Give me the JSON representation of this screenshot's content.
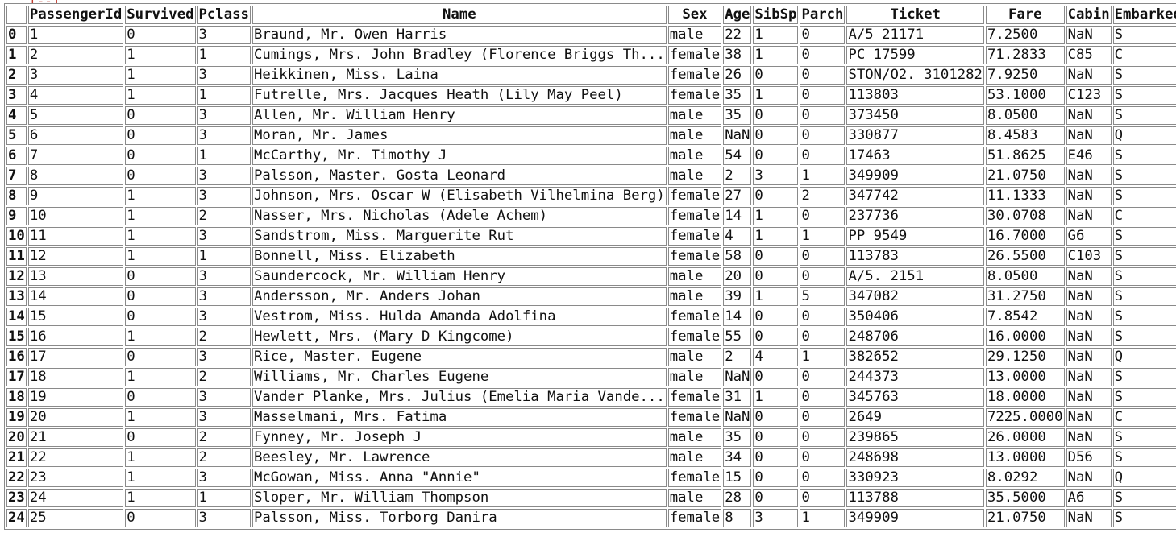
{
  "table": {
    "columns": [
      "PassengerId",
      "Survived",
      "Pclass",
      "Name",
      "Sex",
      "Age",
      "SibSp",
      "Parch",
      "Ticket",
      "Fare",
      "Cabin",
      "Embarked"
    ],
    "rows": [
      {
        "index": "0",
        "cells": [
          "1",
          "0",
          "3",
          "Braund, Mr. Owen Harris",
          "male",
          "22",
          "1",
          "0",
          "A/5 21171",
          "7.2500",
          "NaN",
          "S"
        ]
      },
      {
        "index": "1",
        "cells": [
          "2",
          "1",
          "1",
          "Cumings, Mrs. John Bradley (Florence Briggs Th...",
          "female",
          "38",
          "1",
          "0",
          "PC 17599",
          "71.2833",
          "C85",
          "C"
        ]
      },
      {
        "index": "2",
        "cells": [
          "3",
          "1",
          "3",
          "Heikkinen, Miss. Laina",
          "female",
          "26",
          "0",
          "0",
          "STON/O2. 3101282",
          "7.9250",
          "NaN",
          "S"
        ]
      },
      {
        "index": "3",
        "cells": [
          "4",
          "1",
          "1",
          "Futrelle, Mrs. Jacques Heath (Lily May Peel)",
          "female",
          "35",
          "1",
          "0",
          "113803",
          "53.1000",
          "C123",
          "S"
        ]
      },
      {
        "index": "4",
        "cells": [
          "5",
          "0",
          "3",
          "Allen, Mr. William Henry",
          "male",
          "35",
          "0",
          "0",
          "373450",
          "8.0500",
          "NaN",
          "S"
        ]
      },
      {
        "index": "5",
        "cells": [
          "6",
          "0",
          "3",
          "Moran, Mr. James",
          "male",
          "NaN",
          "0",
          "0",
          "330877",
          "8.4583",
          "NaN",
          "Q"
        ]
      },
      {
        "index": "6",
        "cells": [
          "7",
          "0",
          "1",
          "McCarthy, Mr. Timothy J",
          "male",
          "54",
          "0",
          "0",
          "17463",
          "51.8625",
          "E46",
          "S"
        ]
      },
      {
        "index": "7",
        "cells": [
          "8",
          "0",
          "3",
          "Palsson, Master. Gosta Leonard",
          "male",
          "2",
          "3",
          "1",
          "349909",
          "21.0750",
          "NaN",
          "S"
        ]
      },
      {
        "index": "8",
        "cells": [
          "9",
          "1",
          "3",
          "Johnson, Mrs. Oscar W (Elisabeth Vilhelmina Berg)",
          "female",
          "27",
          "0",
          "2",
          "347742",
          "11.1333",
          "NaN",
          "S"
        ]
      },
      {
        "index": "9",
        "cells": [
          "10",
          "1",
          "2",
          "Nasser, Mrs. Nicholas (Adele Achem)",
          "female",
          "14",
          "1",
          "0",
          "237736",
          "30.0708",
          "NaN",
          "C"
        ]
      },
      {
        "index": "10",
        "cells": [
          "11",
          "1",
          "3",
          "Sandstrom, Miss. Marguerite Rut",
          "female",
          "4",
          "1",
          "1",
          "PP 9549",
          "16.7000",
          "G6",
          "S"
        ]
      },
      {
        "index": "11",
        "cells": [
          "12",
          "1",
          "1",
          "Bonnell, Miss. Elizabeth",
          "female",
          "58",
          "0",
          "0",
          "113783",
          "26.5500",
          "C103",
          "S"
        ]
      },
      {
        "index": "12",
        "cells": [
          "13",
          "0",
          "3",
          "Saundercock, Mr. William Henry",
          "male",
          "20",
          "0",
          "0",
          "A/5. 2151",
          "8.0500",
          "NaN",
          "S"
        ]
      },
      {
        "index": "13",
        "cells": [
          "14",
          "0",
          "3",
          "Andersson, Mr. Anders Johan",
          "male",
          "39",
          "1",
          "5",
          "347082",
          "31.2750",
          "NaN",
          "S"
        ]
      },
      {
        "index": "14",
        "cells": [
          "15",
          "0",
          "3",
          "Vestrom, Miss. Hulda Amanda Adolfina",
          "female",
          "14",
          "0",
          "0",
          "350406",
          "7.8542",
          "NaN",
          "S"
        ]
      },
      {
        "index": "15",
        "cells": [
          "16",
          "1",
          "2",
          "Hewlett, Mrs. (Mary D Kingcome)",
          "female",
          "55",
          "0",
          "0",
          "248706",
          "16.0000",
          "NaN",
          "S"
        ]
      },
      {
        "index": "16",
        "cells": [
          "17",
          "0",
          "3",
          "Rice, Master. Eugene",
          "male",
          "2",
          "4",
          "1",
          "382652",
          "29.1250",
          "NaN",
          "Q"
        ]
      },
      {
        "index": "17",
        "cells": [
          "18",
          "1",
          "2",
          "Williams, Mr. Charles Eugene",
          "male",
          "NaN",
          "0",
          "0",
          "244373",
          "13.0000",
          "NaN",
          "S"
        ]
      },
      {
        "index": "18",
        "cells": [
          "19",
          "0",
          "3",
          "Vander Planke, Mrs. Julius (Emelia Maria Vande...",
          "female",
          "31",
          "1",
          "0",
          "345763",
          "18.0000",
          "NaN",
          "S"
        ]
      },
      {
        "index": "19",
        "cells": [
          "20",
          "1",
          "3",
          "Masselmani, Mrs. Fatima",
          "female",
          "NaN",
          "0",
          "0",
          "2649",
          "7225.0000",
          "NaN",
          "C"
        ]
      },
      {
        "index": "20",
        "cells": [
          "21",
          "0",
          "2",
          "Fynney, Mr. Joseph J",
          "male",
          "35",
          "0",
          "0",
          "239865",
          "26.0000",
          "NaN",
          "S"
        ]
      },
      {
        "index": "21",
        "cells": [
          "22",
          "1",
          "2",
          "Beesley, Mr. Lawrence",
          "male",
          "34",
          "0",
          "0",
          "248698",
          "13.0000",
          "D56",
          "S"
        ]
      },
      {
        "index": "22",
        "cells": [
          "23",
          "1",
          "3",
          "McGowan, Miss. Anna \"Annie\"",
          "female",
          "15",
          "0",
          "0",
          "330923",
          "8.0292",
          "NaN",
          "Q"
        ]
      },
      {
        "index": "23",
        "cells": [
          "24",
          "1",
          "1",
          "Sloper, Mr. William Thompson",
          "male",
          "28",
          "0",
          "0",
          "113788",
          "35.5000",
          "A6",
          "S"
        ]
      },
      {
        "index": "24",
        "cells": [
          "25",
          "0",
          "3",
          "Palsson, Miss. Torborg Danira",
          "female",
          "8",
          "3",
          "1",
          "349909",
          "21.0750",
          "NaN",
          "S"
        ]
      }
    ]
  }
}
